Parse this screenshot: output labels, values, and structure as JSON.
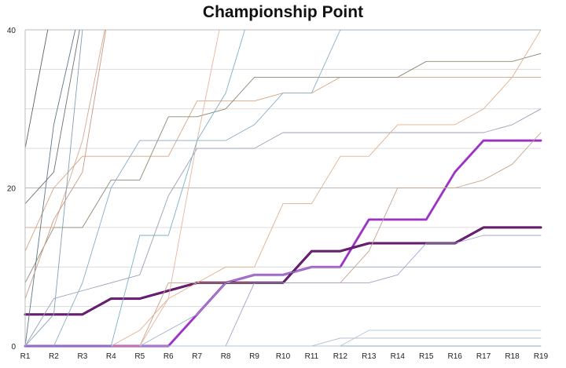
{
  "chart_data": {
    "type": "line",
    "title": "Championship Point",
    "xlabel": "",
    "ylabel": "",
    "categories": [
      "R1",
      "R2",
      "R3",
      "R4",
      "R5",
      "R6",
      "R7",
      "R8",
      "R9",
      "R10",
      "R11",
      "R12",
      "R13",
      "R14",
      "R15",
      "R16",
      "R17",
      "R18",
      "R19"
    ],
    "ylim": [
      0,
      40
    ],
    "yticks": [
      0,
      20,
      40
    ],
    "grid": true,
    "legend": "none",
    "series": [
      {
        "color": "#bb7fe0",
        "width": 3.2,
        "values": [
          0,
          0,
          0,
          0,
          0,
          0,
          4,
          8,
          9,
          9,
          10,
          10,
          16,
          16,
          16,
          22,
          26,
          26,
          26
        ]
      },
      {
        "color": "#9a2fc2",
        "width": 2.2,
        "values": [
          0,
          0,
          0,
          0,
          0,
          0,
          4,
          8,
          9,
          9,
          10,
          10,
          16,
          16,
          16,
          22,
          26,
          26,
          26
        ]
      },
      {
        "color": "#4a1248",
        "width": 3.0,
        "values": [
          4,
          4,
          4,
          6,
          6,
          7,
          8,
          8,
          8,
          8,
          12,
          12,
          13,
          13,
          13,
          13,
          15,
          15,
          15
        ]
      },
      {
        "color": "#8d1fa6",
        "width": 1.0,
        "values": [
          4,
          4,
          4,
          6,
          6,
          7,
          8,
          8,
          8,
          8,
          12,
          12,
          13,
          13,
          13,
          13,
          15,
          15,
          15
        ]
      },
      {
        "color": "#d4a484",
        "width": 0.9,
        "values": [
          12,
          20,
          24,
          24,
          24,
          24,
          31,
          31,
          31,
          32,
          32,
          34,
          34,
          34,
          34,
          34,
          34,
          34,
          34
        ]
      },
      {
        "color": "#8a8a72",
        "width": 0.9,
        "values": [
          8,
          15,
          15,
          21,
          21,
          29,
          29,
          30,
          34,
          34,
          34,
          34,
          34,
          34,
          36,
          36,
          36,
          36,
          37
        ]
      },
      {
        "color": "#9aa0b8",
        "width": 0.9,
        "values": [
          0,
          6,
          7,
          8,
          9,
          19,
          25,
          25,
          25,
          27,
          27,
          27,
          27,
          27,
          27,
          27,
          27,
          28,
          30
        ]
      },
      {
        "color": "#86aec6",
        "width": 0.9,
        "values": [
          0,
          0,
          8,
          20,
          26,
          26,
          26,
          26,
          28,
          32,
          32,
          40,
          40,
          40,
          40,
          40,
          40,
          40,
          40
        ]
      },
      {
        "color": "#e0b08c",
        "width": 0.9,
        "values": [
          0,
          0,
          0,
          0,
          2,
          6,
          8,
          10,
          10,
          18,
          18,
          24,
          24,
          28,
          28,
          28,
          30,
          34,
          40
        ]
      },
      {
        "color": "#c4a48c",
        "width": 0.9,
        "values": [
          0,
          0,
          0,
          0,
          0,
          8,
          8,
          8,
          8,
          8,
          8,
          8,
          12,
          20,
          20,
          20,
          21,
          23,
          27
        ]
      },
      {
        "color": "#a0a0d0",
        "width": 0.9,
        "values": [
          0,
          0,
          0,
          0,
          0,
          0,
          0,
          0,
          8,
          8,
          8,
          8,
          8,
          9,
          13,
          13,
          14,
          14,
          14
        ]
      },
      {
        "color": "#96b4c4",
        "width": 0.9,
        "values": [
          0,
          0,
          0,
          0,
          0,
          2,
          4,
          8,
          9,
          9,
          10,
          10,
          10,
          10,
          10,
          10,
          10,
          10,
          10
        ]
      },
      {
        "color": "#8caebf",
        "width": 0.9,
        "values": [
          0,
          0,
          0,
          0,
          0,
          0,
          0,
          0,
          0,
          0,
          0,
          0,
          0,
          0,
          0,
          0,
          0,
          0,
          0
        ]
      },
      {
        "color": "#a8b8c8",
        "width": 0.9,
        "values": [
          0,
          0,
          0,
          0,
          0,
          0,
          0,
          0,
          0,
          0,
          0,
          1,
          1,
          1,
          1,
          1,
          1,
          1,
          1
        ]
      },
      {
        "color": "#b0c4d4",
        "width": 0.9,
        "values": [
          0,
          0,
          0,
          0,
          0,
          0,
          0,
          0,
          0,
          0,
          0,
          0,
          2,
          2,
          2,
          2,
          2,
          2,
          2
        ]
      },
      {
        "color": "#d8a890",
        "width": 0.9,
        "values": [
          15,
          15,
          26,
          44,
          44,
          44,
          44,
          44,
          44,
          44,
          44,
          44,
          44,
          44,
          44,
          44,
          44,
          44,
          44
        ]
      },
      {
        "color": "#707070",
        "width": 0.9,
        "values": [
          18,
          22,
          42,
          44,
          44,
          44,
          44,
          44,
          44,
          44,
          44,
          44,
          44,
          44,
          44,
          44,
          44,
          44,
          44
        ]
      },
      {
        "color": "#606060",
        "width": 0.9,
        "values": [
          25,
          44,
          44,
          44,
          44,
          44,
          44,
          44,
          44,
          44,
          44,
          44,
          44,
          44,
          44,
          44,
          44,
          44,
          44
        ]
      },
      {
        "color": "#5c7886",
        "width": 0.9,
        "values": [
          0,
          28,
          44,
          44,
          44,
          44,
          44,
          44,
          44,
          44,
          44,
          44,
          44,
          44,
          44,
          44,
          44,
          44,
          44
        ]
      },
      {
        "color": "#80a0b4",
        "width": 0.9,
        "values": [
          0,
          4,
          40,
          44,
          44,
          44,
          44,
          44,
          44,
          44,
          44,
          44,
          44,
          44,
          44,
          44,
          44,
          44,
          44
        ]
      },
      {
        "color": "#c89880",
        "width": 0.9,
        "values": [
          6,
          16,
          22,
          44,
          44,
          44,
          44,
          44,
          44,
          44,
          44,
          44,
          44,
          44,
          44,
          44,
          44,
          44,
          44
        ]
      },
      {
        "color": "#e8b49c",
        "width": 0.9,
        "values": [
          0,
          0,
          0,
          0,
          0,
          6,
          26,
          44,
          44,
          44,
          44,
          44,
          44,
          44,
          44,
          44,
          44,
          44,
          44
        ]
      },
      {
        "color": "#7ab0c8",
        "width": 0.9,
        "values": [
          0,
          0,
          0,
          0,
          14,
          14,
          26,
          32,
          44,
          44,
          44,
          44,
          44,
          44,
          44,
          44,
          44,
          44,
          44
        ]
      }
    ]
  }
}
